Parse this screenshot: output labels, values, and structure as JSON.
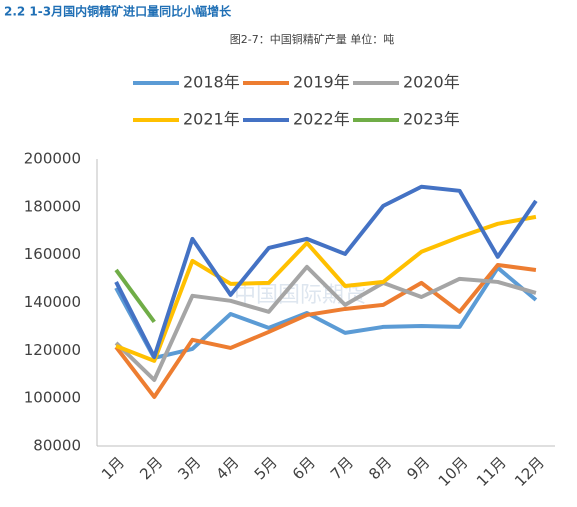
{
  "heading": "2.2 1-3月国内铜精矿进口量同比小幅增长",
  "chart_data": {
    "type": "line",
    "title": "图2-7：中国铜精矿产量 单位：吨",
    "watermark": "中国国际期货",
    "categories": [
      "1月",
      "2月",
      "3月",
      "4月",
      "5月",
      "6月",
      "7月",
      "8月",
      "9月",
      "10月",
      "11月",
      "12月"
    ],
    "series": [
      {
        "name": "2018年",
        "color": "#5b9bd5",
        "values": [
          146100,
          116800,
          120600,
          135200,
          129400,
          135600,
          127300,
          129800,
          130200,
          129800,
          154500,
          141100
        ]
      },
      {
        "name": "2019年",
        "color": "#ed7d31",
        "values": [
          121400,
          100500,
          124400,
          121000,
          127700,
          134800,
          137300,
          139000,
          148200,
          136100,
          155700,
          153600
        ]
      },
      {
        "name": "2020年",
        "color": "#a5a5a5",
        "values": [
          123100,
          107600,
          142800,
          140700,
          136100,
          154900,
          139000,
          148200,
          142300,
          149900,
          148600,
          144000
        ]
      },
      {
        "name": "2021年",
        "color": "#ffc000",
        "values": [
          121800,
          115600,
          157400,
          147800,
          148200,
          164900,
          146900,
          148600,
          161200,
          167400,
          172900,
          175800
        ]
      },
      {
        "name": "2022年",
        "color": "#4472c4",
        "values": [
          148600,
          117200,
          166600,
          143200,
          162800,
          166600,
          160300,
          180400,
          188400,
          186700,
          159100,
          182500
        ]
      },
      {
        "name": "2023年",
        "color": "#70ad47",
        "values": [
          153600,
          131900,
          null,
          null,
          null,
          null,
          null,
          null,
          null,
          null,
          null,
          null
        ]
      }
    ],
    "ylim": [
      80000,
      200000
    ],
    "yticks": [
      80000,
      100000,
      120000,
      140000,
      160000,
      180000,
      200000
    ],
    "grid": false
  }
}
